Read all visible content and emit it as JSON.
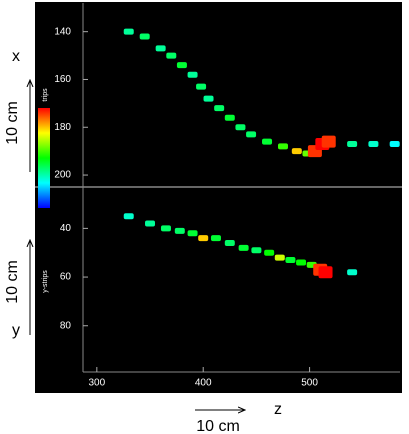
{
  "chart_data": [
    {
      "type": "scatter",
      "ylabel": "trips",
      "colormap": "jet",
      "x": [
        330,
        345,
        360,
        370,
        380,
        390,
        398,
        405,
        415,
        425,
        435,
        445,
        460,
        475,
        488,
        498,
        505,
        512,
        518,
        540,
        560,
        580
      ],
      "y": [
        140,
        142,
        147,
        150,
        154,
        158,
        163,
        168,
        172,
        176,
        180,
        183,
        186,
        188,
        190,
        191,
        190,
        187,
        186,
        187,
        187,
        187
      ],
      "intensity": [
        0.35,
        0.4,
        0.35,
        0.4,
        0.45,
        0.35,
        0.4,
        0.35,
        0.4,
        0.45,
        0.4,
        0.4,
        0.45,
        0.55,
        0.8,
        0.6,
        0.95,
        1,
        0.95,
        0.35,
        0.3,
        0.25
      ],
      "xlim": [
        287,
        585
      ],
      "ylim": [
        205,
        128
      ],
      "yticks": [
        140,
        160,
        180,
        200
      ]
    },
    {
      "type": "scatter",
      "ylabel": "y-strips",
      "colormap": "jet",
      "x": [
        330,
        350,
        365,
        378,
        390,
        400,
        412,
        425,
        438,
        450,
        462,
        472,
        482,
        492,
        502,
        510,
        515,
        540
      ],
      "y": [
        35,
        38,
        40,
        41,
        42,
        44,
        44,
        46,
        48,
        49,
        50,
        52,
        53,
        54,
        55,
        57,
        58,
        58
      ],
      "intensity": [
        0.3,
        0.35,
        0.4,
        0.4,
        0.45,
        0.8,
        0.45,
        0.4,
        0.45,
        0.4,
        0.5,
        0.7,
        0.45,
        0.5,
        0.55,
        0.95,
        1,
        0.3
      ],
      "xlim": [
        287,
        585
      ],
      "ylim": [
        99,
        23
      ],
      "yticks": [
        40,
        60,
        80
      ],
      "xticks": [
        300,
        400,
        500
      ]
    }
  ],
  "annotations": {
    "x_axis": "x",
    "y_axis": "y",
    "z_axis": "z",
    "scale_x": "10 cm",
    "scale_y": "10 cm",
    "scale_z": "10 cm"
  }
}
